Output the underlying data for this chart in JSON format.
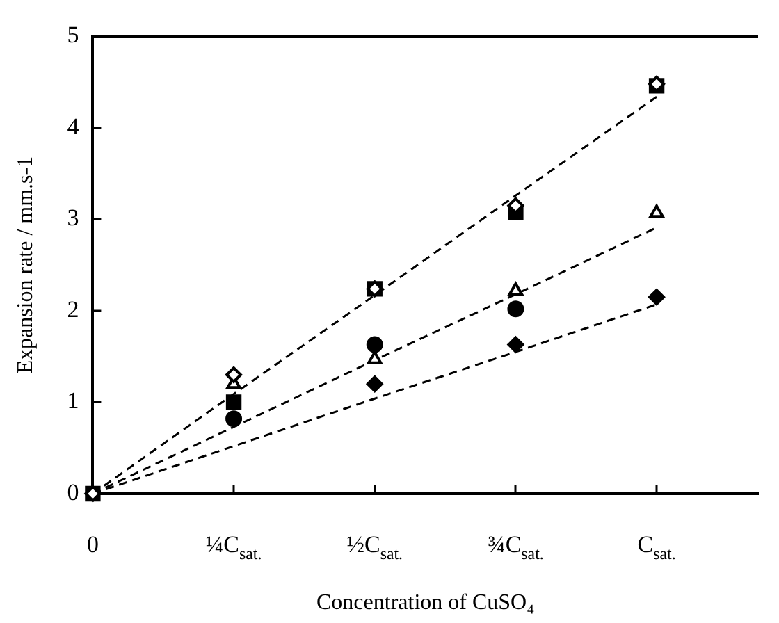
{
  "chart_data": {
    "type": "scatter",
    "xlabel": "Concentration of CuSO₄",
    "ylabel": "Expansion rate / mm.s-1",
    "categories": [
      "0",
      "¼C$_{sat.}$",
      "½C$_{sat.}$",
      "¾C$_{sat.}$",
      "C$_{sat.}$"
    ],
    "ylim": [
      0,
      5
    ],
    "yticks": [
      0,
      1,
      2,
      3,
      4,
      5
    ],
    "grid": false,
    "legend": false,
    "series": [
      {
        "marker": "diamond",
        "color": "#ffffff",
        "values": [
          0,
          1.3,
          2.24,
          3.15,
          4.48
        ]
      },
      {
        "marker": "square",
        "color": "#000000",
        "values": [
          0,
          1.0,
          2.24,
          3.08,
          4.46
        ]
      },
      {
        "marker": "triangle",
        "color": "#ffffff",
        "values": [
          null,
          1.2,
          1.47,
          2.22,
          3.07
        ]
      },
      {
        "marker": "circle",
        "color": "#000000",
        "values": [
          null,
          0.82,
          1.63,
          2.02,
          null
        ]
      },
      {
        "marker": "diamond",
        "color": "#000000",
        "values": [
          null,
          null,
          1.2,
          1.63,
          2.15
        ]
      },
      {
        "type": "line",
        "line_style": "dashed",
        "marker": "none",
        "color": "#000000",
        "values": [
          0,
          1.09,
          2.17,
          3.26,
          4.34
        ]
      },
      {
        "type": "line",
        "line_style": "dashed",
        "marker": "none",
        "color": "#000000",
        "values": [
          0,
          0.73,
          1.46,
          2.18,
          2.91
        ]
      },
      {
        "type": "line",
        "line_style": "dashed",
        "marker": "none",
        "color": "#000000",
        "values": [
          0,
          0.52,
          1.04,
          1.55,
          2.07
        ]
      }
    ]
  }
}
